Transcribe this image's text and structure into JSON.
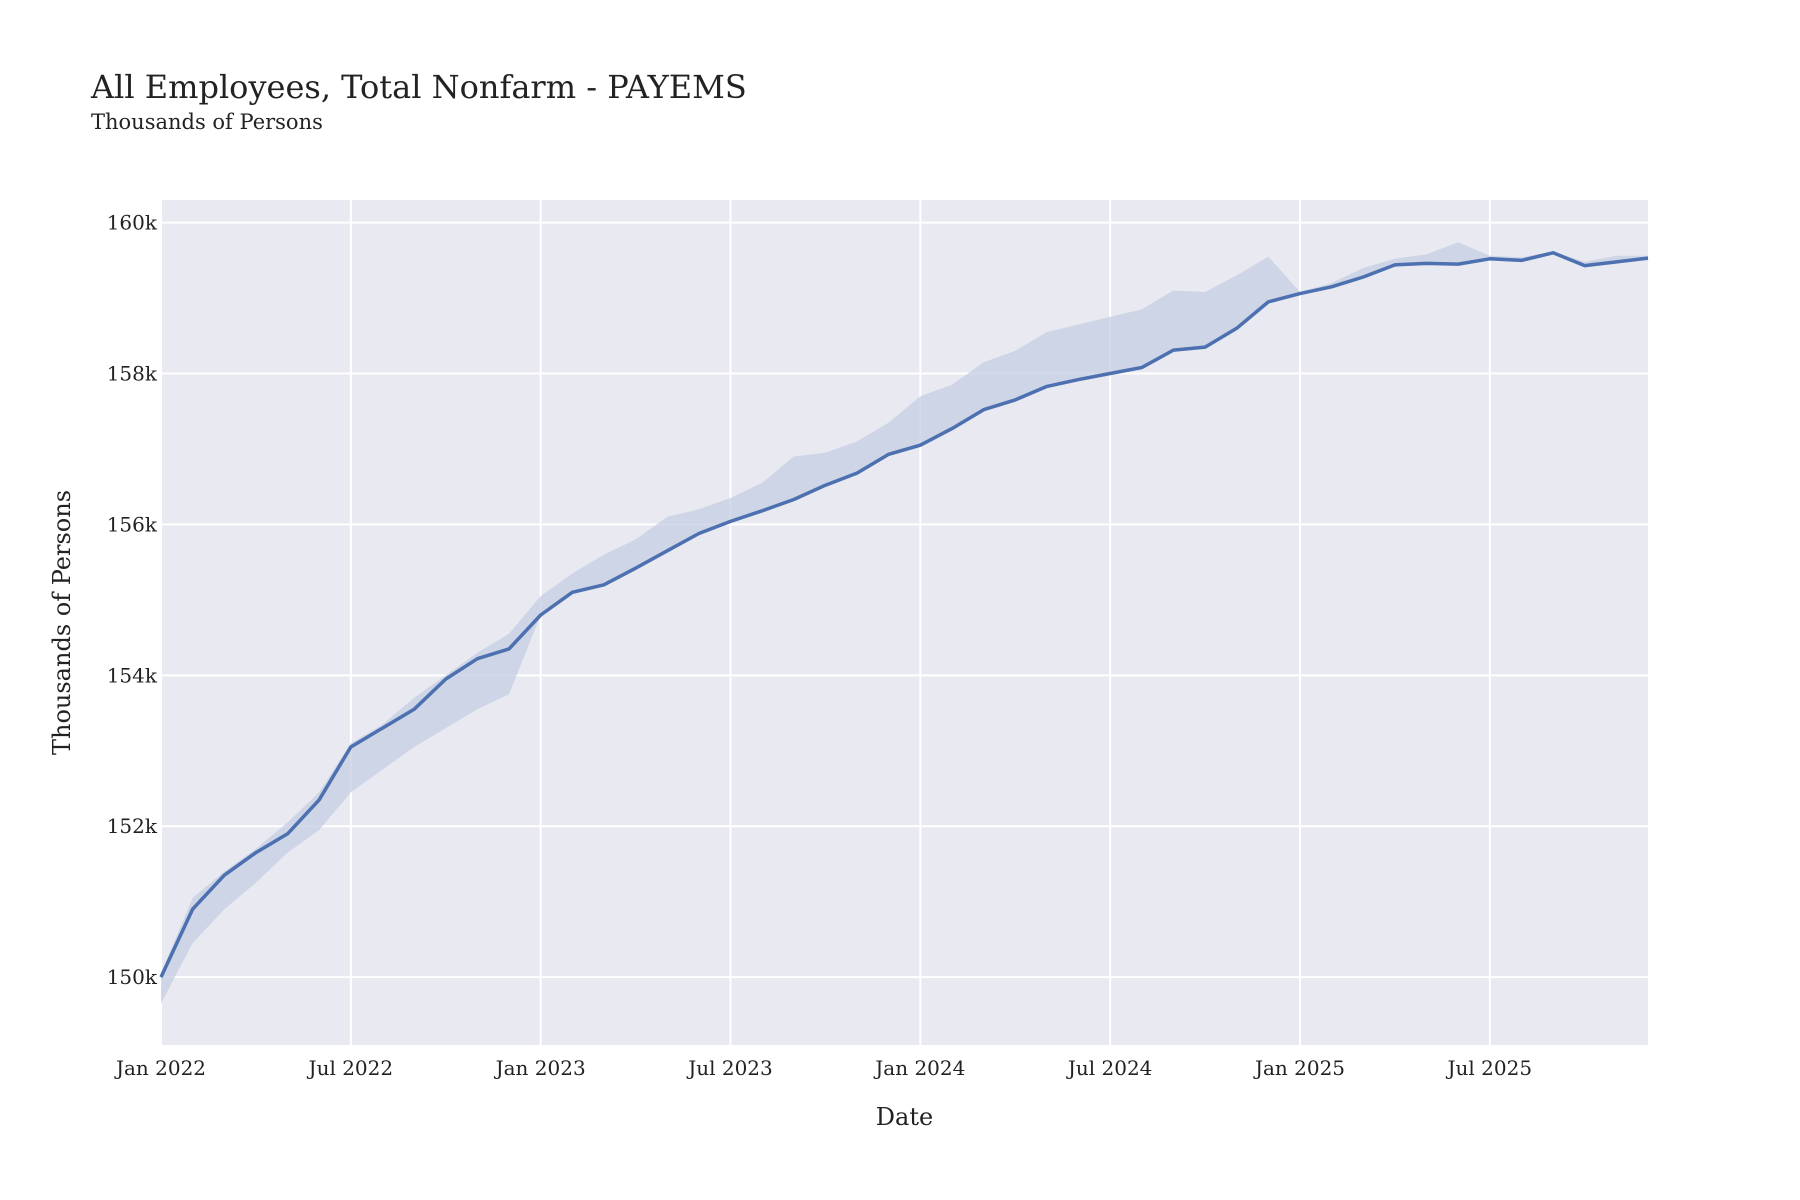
{
  "chart_data": {
    "type": "line",
    "title": "All Employees, Total Nonfarm - PAYEMS",
    "subtitle": "Thousands of Persons",
    "xlabel": "Date",
    "ylabel": "Thousands of Persons",
    "x_ticks": [
      "Jan 2022",
      "Jul 2022",
      "Jan 2023",
      "Jul 2023",
      "Jan 2024",
      "Jul 2024",
      "Jan 2025",
      "Jul 2025"
    ],
    "y_ticks": [
      "150k",
      "152k",
      "154k",
      "156k",
      "158k",
      "160k"
    ],
    "y_tick_values": [
      150000,
      152000,
      154000,
      156000,
      158000,
      160000
    ],
    "ylim": [
      149100,
      160300
    ],
    "xlim": [
      "2022-01",
      "2025-12"
    ],
    "grid": true,
    "background": "#e8e9f1",
    "line_color": "#4c70b0",
    "band_color": "#c6cde2",
    "series": [
      {
        "x": [
          "2022-01",
          "2022-02",
          "2022-03",
          "2022-04",
          "2022-05",
          "2022-06",
          "2022-07",
          "2022-08",
          "2022-09",
          "2022-10",
          "2022-11",
          "2022-12",
          "2023-01",
          "2023-02",
          "2023-03",
          "2023-04",
          "2023-05",
          "2023-06",
          "2023-07",
          "2023-08",
          "2023-09",
          "2023-10",
          "2023-11",
          "2023-12",
          "2024-01",
          "2024-02",
          "2024-03",
          "2024-04",
          "2024-05",
          "2024-06",
          "2024-07",
          "2024-08",
          "2024-09",
          "2024-10",
          "2024-11",
          "2024-12",
          "2025-01",
          "2025-02",
          "2025-03",
          "2025-04",
          "2025-05",
          "2025-06",
          "2025-07",
          "2025-08",
          "2025-09",
          "2025-10",
          "2025-11",
          "2025-12"
        ],
        "values": [
          150000,
          150900,
          151350,
          151650,
          151900,
          152350,
          153050,
          153300,
          153550,
          153950,
          154220,
          154350,
          154800,
          155100,
          155200,
          155420,
          155650,
          155880,
          156040,
          156180,
          156330,
          156520,
          156680,
          156930,
          157050,
          157270,
          157520,
          157650,
          157830,
          157920,
          158000,
          158080,
          158310,
          158350,
          158600,
          158950,
          159060,
          159150,
          159280,
          159440,
          159460,
          159450,
          159520,
          159500,
          159600,
          159430,
          159480,
          159530
        ],
        "upper": [
          150050,
          151050,
          151400,
          151700,
          152050,
          152450,
          153100,
          153350,
          153700,
          154000,
          154300,
          154550,
          155050,
          155350,
          155600,
          155800,
          156100,
          156200,
          156350,
          156550,
          156900,
          156950,
          157100,
          157350,
          157700,
          157850,
          158150,
          158300,
          158550,
          158650,
          158750,
          158850,
          159100,
          159080,
          159300,
          159550,
          159080,
          159200,
          159400,
          159520,
          159580,
          159740,
          159560,
          159540,
          159620,
          159480,
          159560,
          159560
        ],
        "lower": [
          149650,
          150450,
          150900,
          151250,
          151650,
          151950,
          152450,
          152750,
          153050,
          153300,
          153550,
          153750,
          154800,
          155100,
          155200,
          155420,
          155650,
          155880,
          156040,
          156180,
          156330,
          156520,
          156680,
          156930,
          157050,
          157270,
          157520,
          157650,
          157830,
          157920,
          158000,
          158080,
          158310,
          158350,
          158600,
          158950,
          159060,
          159150,
          159280,
          159440,
          159460,
          159450,
          159520,
          159500,
          159600,
          159430,
          159480,
          159530
        ]
      }
    ]
  }
}
